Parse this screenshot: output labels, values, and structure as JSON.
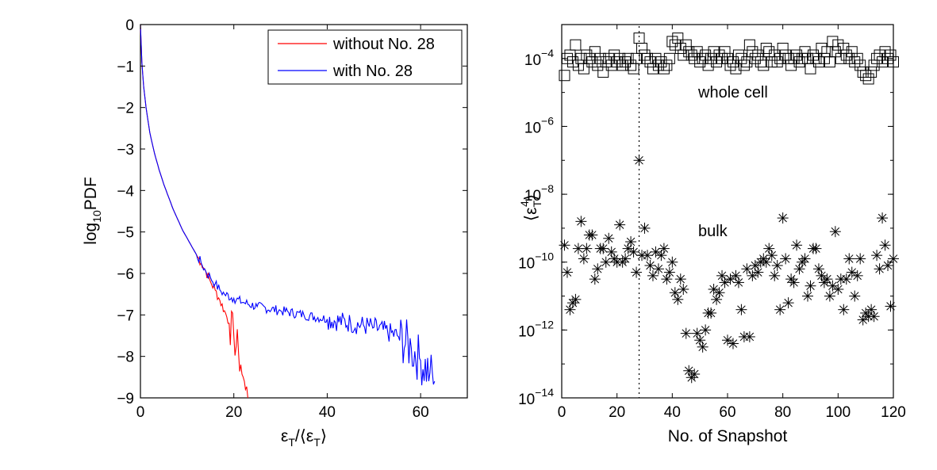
{
  "chart_data": [
    {
      "type": "line",
      "xlabel": "ε_T/⟨ε_T⟩",
      "ylabel": "log10PDF",
      "xlim": [
        0,
        70
      ],
      "ylim": [
        -9,
        0
      ],
      "xticks": [
        0,
        20,
        40,
        60
      ],
      "yticks": [
        0,
        -1,
        -2,
        -3,
        -4,
        -5,
        -6,
        -7,
        -8,
        -9
      ],
      "legend_position": "top-right",
      "series": [
        {
          "name": "without No. 28",
          "color": "#ff0000",
          "x": [
            0,
            0.3,
            0.7,
            1.2,
            2,
            3,
            4,
            5,
            6,
            7,
            8,
            9,
            10,
            11,
            12,
            13,
            14,
            15,
            16,
            17,
            18,
            19,
            20,
            21,
            21.5,
            22,
            22.5,
            23
          ],
          "y": [
            0,
            -0.9,
            -1.5,
            -2.0,
            -2.6,
            -3.1,
            -3.5,
            -3.85,
            -4.15,
            -4.45,
            -4.7,
            -4.95,
            -5.15,
            -5.35,
            -5.55,
            -5.75,
            -5.95,
            -6.2,
            -6.4,
            -6.65,
            -6.9,
            -7.2,
            -7.5,
            -7.9,
            -8.2,
            -8.5,
            -8.8,
            -9.0
          ]
        },
        {
          "name": "with No. 28",
          "color": "#0000ff",
          "x": [
            0,
            0.3,
            0.7,
            1.2,
            2,
            3,
            4,
            5,
            6,
            7,
            8,
            9,
            10,
            11,
            12,
            13,
            14,
            15,
            16,
            17,
            18,
            20,
            22,
            25,
            30,
            35,
            40,
            45,
            50,
            55,
            58,
            60,
            62,
            63
          ],
          "y": [
            0,
            -0.9,
            -1.5,
            -2.0,
            -2.6,
            -3.1,
            -3.5,
            -3.85,
            -4.15,
            -4.45,
            -4.7,
            -4.95,
            -5.15,
            -5.35,
            -5.55,
            -5.75,
            -5.95,
            -6.1,
            -6.25,
            -6.4,
            -6.5,
            -6.6,
            -6.7,
            -6.8,
            -6.9,
            -7.0,
            -7.1,
            -7.2,
            -7.3,
            -7.5,
            -7.8,
            -8.1,
            -8.4,
            -8.6
          ]
        }
      ]
    },
    {
      "type": "scatter",
      "xlabel": "No. of Snapshot",
      "ylabel": "⟨ε_T^4⟩",
      "xlim": [
        0,
        120
      ],
      "ylim_exponent": [
        -14,
        -3
      ],
      "yscale": "log",
      "xticks": [
        0,
        20,
        40,
        60,
        80,
        100,
        120
      ],
      "ytick_labels": [
        "10^-4",
        "10^-6",
        "10^-8",
        "10^-10",
        "10^-12",
        "10^-14"
      ],
      "vline_x": 28,
      "annotations": [
        "whole cell",
        "bulk"
      ],
      "series": [
        {
          "marker": "square",
          "x": [
            1,
            2,
            3,
            4,
            5,
            6,
            7,
            8,
            9,
            10,
            11,
            12,
            13,
            14,
            15,
            16,
            17,
            18,
            19,
            20,
            21,
            22,
            23,
            24,
            25,
            26,
            27,
            28,
            29,
            30,
            31,
            32,
            33,
            34,
            35,
            36,
            37,
            38,
            39,
            40,
            41,
            42,
            43,
            44,
            45,
            46,
            47,
            48,
            49,
            50,
            51,
            52,
            53,
            54,
            55,
            56,
            57,
            58,
            59,
            60,
            61,
            62,
            63,
            64,
            65,
            66,
            67,
            68,
            69,
            70,
            71,
            72,
            73,
            74,
            75,
            76,
            77,
            78,
            79,
            80,
            81,
            82,
            83,
            84,
            85,
            86,
            87,
            88,
            89,
            90,
            91,
            92,
            93,
            94,
            95,
            96,
            97,
            98,
            99,
            100,
            101,
            102,
            103,
            104,
            105,
            106,
            107,
            108,
            109,
            110,
            111,
            112,
            113,
            114,
            115,
            116,
            117,
            118,
            119,
            120
          ],
          "log10_y": [
            -4.5,
            -4.0,
            -3.9,
            -4.1,
            -3.6,
            -4.2,
            -4.0,
            -4.3,
            -3.9,
            -4.0,
            -4.1,
            -3.8,
            -4.2,
            -4.0,
            -4.4,
            -4.1,
            -4.0,
            -4.2,
            -3.9,
            -4.1,
            -4.0,
            -4.2,
            -4.1,
            -4.0,
            -4.2,
            -4.3,
            -4.0,
            -3.4,
            -3.7,
            -3.9,
            -4.0,
            -4.1,
            -4.3,
            -4.0,
            -4.2,
            -4.1,
            -4.3,
            -4.2,
            -4.0,
            -3.5,
            -3.6,
            -3.4,
            -3.7,
            -3.9,
            -3.6,
            -3.8,
            -3.9,
            -4.0,
            -3.8,
            -4.1,
            -4.0,
            -3.9,
            -4.2,
            -4.0,
            -3.8,
            -4.1,
            -3.9,
            -4.0,
            -3.8,
            -4.0,
            -4.2,
            -4.1,
            -4.3,
            -3.9,
            -4.0,
            -4.2,
            -4.1,
            -3.6,
            -3.8,
            -4.0,
            -3.9,
            -4.1,
            -4.2,
            -3.7,
            -3.8,
            -4.1,
            -3.9,
            -4.1,
            -4.0,
            -3.7,
            -3.9,
            -4.0,
            -4.2,
            -4.0,
            -3.9,
            -4.1,
            -4.0,
            -3.8,
            -4.0,
            -4.3,
            -3.9,
            -4.0,
            -4.1,
            -3.7,
            -4.0,
            -3.8,
            -4.1,
            -3.5,
            -3.8,
            -3.6,
            -4.0,
            -3.7,
            -3.9,
            -4.0,
            -3.8,
            -4.1,
            -4.0,
            -4.2,
            -4.4,
            -4.5,
            -4.6,
            -4.4,
            -4.2,
            -4.0,
            -3.9,
            -4.1,
            -3.8,
            -4.0,
            -3.9,
            -4.1
          ]
        },
        {
          "marker": "asterisk",
          "x": [
            1,
            2,
            3,
            4,
            5,
            6,
            7,
            8,
            9,
            10,
            11,
            12,
            13,
            14,
            15,
            16,
            17,
            18,
            19,
            20,
            21,
            22,
            23,
            24,
            25,
            26,
            27,
            28,
            29,
            30,
            31,
            32,
            33,
            34,
            35,
            36,
            37,
            38,
            39,
            40,
            41,
            42,
            43,
            44,
            45,
            46,
            47,
            48,
            49,
            50,
            51,
            52,
            53,
            54,
            55,
            56,
            57,
            58,
            59,
            60,
            61,
            62,
            63,
            64,
            65,
            66,
            67,
            68,
            69,
            70,
            71,
            72,
            73,
            74,
            75,
            76,
            77,
            78,
            79,
            80,
            81,
            82,
            83,
            84,
            85,
            86,
            87,
            88,
            89,
            90,
            91,
            92,
            93,
            94,
            95,
            96,
            97,
            98,
            99,
            100,
            101,
            102,
            103,
            104,
            105,
            106,
            107,
            108,
            109,
            110,
            111,
            112,
            113,
            114,
            115,
            116,
            117,
            118,
            119,
            120
          ],
          "log10_y": [
            -9.5,
            -10.3,
            -11.4,
            -11.2,
            -11.1,
            -9.6,
            -8.8,
            -9.9,
            -9.6,
            -9.2,
            -9.2,
            -10.5,
            -10.2,
            -9.6,
            -9.6,
            -10.0,
            -9.3,
            -9.7,
            -9.9,
            -10.0,
            -8.9,
            -10.0,
            -9.9,
            -9.6,
            -9.4,
            -9.7,
            -10.3,
            -7.0,
            -9.8,
            -9.0,
            -9.8,
            -10.1,
            -10.4,
            -9.7,
            -10.2,
            -9.8,
            -9.6,
            -10.5,
            -10.3,
            -10.0,
            -10.9,
            -11.1,
            -10.5,
            -10.8,
            -12.1,
            -13.2,
            -13.4,
            -13.3,
            -12.1,
            -12.3,
            -12.5,
            -12.0,
            -11.5,
            -11.5,
            -10.8,
            -11.1,
            -10.9,
            -10.4,
            -10.6,
            -12.3,
            -10.5,
            -12.4,
            -10.4,
            -10.6,
            -11.4,
            -12.2,
            -10.2,
            -12.2,
            -10.4,
            -10.1,
            -10.3,
            -10.0,
            -9.9,
            -10.0,
            -9.6,
            -9.8,
            -10.4,
            -10.1,
            -11.4,
            -8.7,
            -9.9,
            -11.2,
            -10.5,
            -10.6,
            -9.5,
            -10.2,
            -10.0,
            -9.9,
            -11.0,
            -10.7,
            -9.6,
            -9.6,
            -10.2,
            -10.4,
            -10.6,
            -10.5,
            -11.0,
            -10.7,
            -9.1,
            -10.8,
            -10.5,
            -11.4,
            -10.5,
            -9.9,
            -10.3,
            -11.0,
            -10.4,
            -9.9,
            -11.7,
            -11.5,
            -11.6,
            -11.4,
            -11.6,
            -9.8,
            -10.2,
            -8.7,
            -9.5,
            -10.1,
            -11.3,
            -9.9
          ]
        }
      ]
    }
  ]
}
